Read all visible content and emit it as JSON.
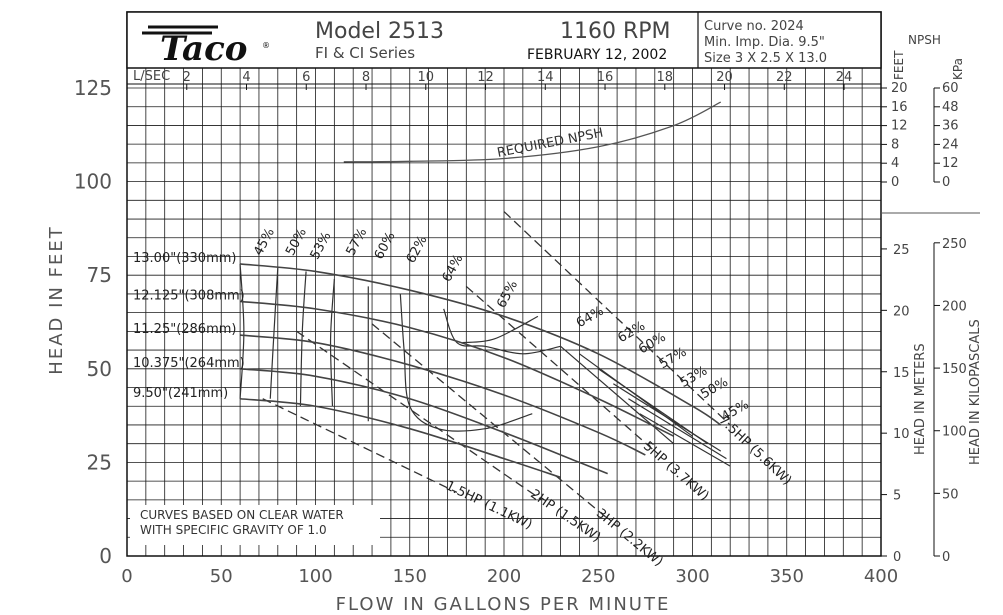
{
  "header": {
    "model": "Model 2513",
    "series": "FI & CI Series",
    "rpm": "1160 RPM",
    "date": "FEBRUARY 12, 2002",
    "curve_no": "Curve no. 2024",
    "min_imp": "Min. Imp. Dia. 9.5\"",
    "size": "Size 3 X 2.5 X 13.0",
    "logo_text": "Taco",
    "logo_reg": "®"
  },
  "axes": {
    "xlabel": "FLOW IN GALLONS PER MINUTE",
    "ylabel": "HEAD IN FEET",
    "x_ticks": [
      "0",
      "50",
      "100",
      "150",
      "200",
      "250",
      "300",
      "350",
      "400"
    ],
    "y_ticks": [
      "0",
      "25",
      "50",
      "75",
      "100",
      "125"
    ],
    "lsec_label": "L/SEC",
    "lsec_ticks": [
      "2",
      "4",
      "6",
      "8",
      "10",
      "12",
      "14",
      "16",
      "18",
      "20",
      "22",
      "24"
    ],
    "npsh_title": "NPSH",
    "npsh_feet_label": "FEET",
    "npsh_kpa_label": "KPa",
    "npsh_feet_ticks": [
      "20",
      "16",
      "12",
      "8",
      "4",
      "0"
    ],
    "npsh_kpa_ticks": [
      "60",
      "48",
      "36",
      "24",
      "12",
      "0"
    ],
    "meters_label": "HEAD IN METERS",
    "meters_ticks": [
      "25",
      "20",
      "15",
      "10",
      "5",
      "0"
    ],
    "kpa_label": "HEAD IN KILOPASCALS",
    "kpa_ticks": [
      "250",
      "200",
      "150",
      "100",
      "50",
      "0"
    ]
  },
  "note": {
    "line1": "CURVES BASED ON CLEAR WATER",
    "line2": "WITH SPECIFIC GRAVITY OF 1.0"
  },
  "chart_data": {
    "type": "line",
    "title": "Model 2513 FI & CI Series 1160 RPM",
    "xlabel": "FLOW IN GALLONS PER MINUTE",
    "ylabel": "HEAD IN FEET",
    "xlim": [
      0,
      400
    ],
    "ylim": [
      0,
      125
    ],
    "grid": true,
    "series": [
      {
        "name": "13.00\"(330mm)",
        "x": [
          60,
          100,
          150,
          200,
          250,
          300,
          315
        ],
        "y": [
          78,
          76,
          71,
          64,
          54,
          40,
          35
        ]
      },
      {
        "name": "12.125\"(308mm)",
        "x": [
          60,
          100,
          150,
          200,
          250,
          290
        ],
        "y": [
          68,
          66,
          61,
          53,
          42,
          32
        ]
      },
      {
        "name": "11.25\"(286mm)",
        "x": [
          60,
          100,
          150,
          200,
          250,
          275
        ],
        "y": [
          59,
          57,
          51,
          43,
          33,
          27
        ]
      },
      {
        "name": "10.375\"(264mm)",
        "x": [
          60,
          100,
          150,
          200,
          240,
          255
        ],
        "y": [
          50,
          48,
          42,
          33,
          25,
          22
        ]
      },
      {
        "name": "9.50\"(241mm)",
        "x": [
          60,
          100,
          150,
          200,
          230
        ],
        "y": [
          42,
          40,
          34,
          26,
          21
        ]
      }
    ],
    "npsh": {
      "name": "REQUIRED NPSH",
      "x": [
        115,
        150,
        200,
        250,
        290,
        315
      ],
      "y_ft": [
        4.3,
        4.4,
        5.0,
        7.5,
        12,
        17
      ]
    },
    "efficiency_labels": [
      "45%",
      "50%",
      "53%",
      "57%",
      "60%",
      "62%",
      "64%",
      "65%",
      "64%",
      "62%",
      "60%",
      "57%",
      "53%",
      "50%",
      "45%"
    ],
    "horsepower_lines": [
      {
        "name": "1.5HP (1.1KW)",
        "x": [
          72,
          175
        ],
        "y": [
          42,
          17
        ]
      },
      {
        "name": "2HP (1.5KW)",
        "x": [
          90,
          220
        ],
        "y": [
          60,
          15
        ]
      },
      {
        "name": "3HP (2.2KW)",
        "x": [
          130,
          255
        ],
        "y": [
          62,
          10
        ]
      },
      {
        "name": "5HP (3.7KW)",
        "x": [
          180,
          280
        ],
        "y": [
          72,
          28
        ]
      },
      {
        "name": "7.5HP (5.6KW)",
        "x": [
          200,
          320
        ],
        "y": [
          92,
          35
        ]
      }
    ]
  }
}
